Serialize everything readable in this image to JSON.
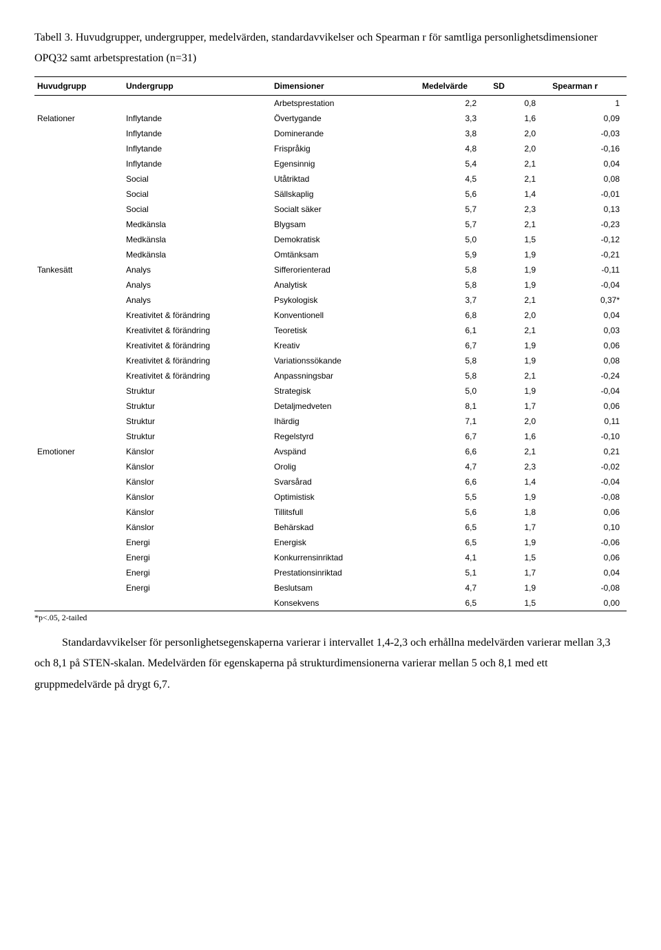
{
  "caption": "Tabell 3. Huvudgrupper, undergrupper, medelvärden, standardavvikelser och Spearman r för samtliga personlighetsdimensioner OPQ32 samt arbetsprestation (n=31)",
  "headers": {
    "huvudgrupp": "Huvudgrupp",
    "undergrupp": "Undergrupp",
    "dimensioner": "Dimensioner",
    "medelvarde": "Medelvärde",
    "sd": "SD",
    "spearman": "Spearman r"
  },
  "rows": [
    {
      "h": "",
      "u": "",
      "d": "Arbetsprestation",
      "m": "2,2",
      "s": "0,8",
      "r": "1"
    },
    {
      "h": "Relationer",
      "u": "Inflytande",
      "d": "Övertygande",
      "m": "3,3",
      "s": "1,6",
      "r": "0,09"
    },
    {
      "h": "",
      "u": "Inflytande",
      "d": "Dominerande",
      "m": "3,8",
      "s": "2,0",
      "r": "-0,03"
    },
    {
      "h": "",
      "u": "Inflytande",
      "d": "Frispråkig",
      "m": "4,8",
      "s": "2,0",
      "r": "-0,16"
    },
    {
      "h": "",
      "u": "Inflytande",
      "d": "Egensinnig",
      "m": "5,4",
      "s": "2,1",
      "r": "0,04"
    },
    {
      "h": "",
      "u": "Social",
      "d": "Utåtriktad",
      "m": "4,5",
      "s": "2,1",
      "r": "0,08"
    },
    {
      "h": "",
      "u": "Social",
      "d": "Sällskaplig",
      "m": "5,6",
      "s": "1,4",
      "r": "-0,01"
    },
    {
      "h": "",
      "u": "Social",
      "d": "Socialt säker",
      "m": "5,7",
      "s": "2,3",
      "r": "0,13"
    },
    {
      "h": "",
      "u": "Medkänsla",
      "d": "Blygsam",
      "m": "5,7",
      "s": "2,1",
      "r": "-0,23"
    },
    {
      "h": "",
      "u": "Medkänsla",
      "d": "Demokratisk",
      "m": "5,0",
      "s": "1,5",
      "r": "-0,12"
    },
    {
      "h": "",
      "u": "Medkänsla",
      "d": "Omtänksam",
      "m": "5,9",
      "s": "1,9",
      "r": "-0,21"
    },
    {
      "h": "Tankesätt",
      "u": "Analys",
      "d": "Sifferorienterad",
      "m": "5,8",
      "s": "1,9",
      "r": "-0,11"
    },
    {
      "h": "",
      "u": "Analys",
      "d": "Analytisk",
      "m": "5,8",
      "s": "1,9",
      "r": "-0,04"
    },
    {
      "h": "",
      "u": "Analys",
      "d": "Psykologisk",
      "m": "3,7",
      "s": "2,1",
      "r": "0,37*"
    },
    {
      "h": "",
      "u": "Kreativitet & förändring",
      "d": "Konventionell",
      "m": "6,8",
      "s": "2,0",
      "r": "0,04"
    },
    {
      "h": "",
      "u": "Kreativitet & förändring",
      "d": "Teoretisk",
      "m": "6,1",
      "s": "2,1",
      "r": "0,03"
    },
    {
      "h": "",
      "u": "Kreativitet & förändring",
      "d": "Kreativ",
      "m": "6,7",
      "s": "1,9",
      "r": "0,06"
    },
    {
      "h": "",
      "u": "Kreativitet & förändring",
      "d": "Variationssökande",
      "m": "5,8",
      "s": "1,9",
      "r": "0,08"
    },
    {
      "h": "",
      "u": "Kreativitet & förändring",
      "d": "Anpassningsbar",
      "m": "5,8",
      "s": "2,1",
      "r": "-0,24"
    },
    {
      "h": "",
      "u": "Struktur",
      "d": "Strategisk",
      "m": "5,0",
      "s": "1,9",
      "r": "-0,04"
    },
    {
      "h": "",
      "u": "Struktur",
      "d": "Detaljmedveten",
      "m": "8,1",
      "s": "1,7",
      "r": "0,06"
    },
    {
      "h": "",
      "u": "Struktur",
      "d": "Ihärdig",
      "m": "7,1",
      "s": "2,0",
      "r": "0,11"
    },
    {
      "h": "",
      "u": "Struktur",
      "d": "Regelstyrd",
      "m": "6,7",
      "s": "1,6",
      "r": "-0,10"
    },
    {
      "h": "Emotioner",
      "u": "Känslor",
      "d": "Avspänd",
      "m": "6,6",
      "s": "2,1",
      "r": "0,21"
    },
    {
      "h": "",
      "u": "Känslor",
      "d": "Orolig",
      "m": "4,7",
      "s": "2,3",
      "r": "-0,02"
    },
    {
      "h": "",
      "u": "Känslor",
      "d": "Svarsårad",
      "m": "6,6",
      "s": "1,4",
      "r": "-0,04"
    },
    {
      "h": "",
      "u": "Känslor",
      "d": "Optimistisk",
      "m": "5,5",
      "s": "1,9",
      "r": "-0,08"
    },
    {
      "h": "",
      "u": "Känslor",
      "d": "Tillitsfull",
      "m": "5,6",
      "s": "1,8",
      "r": "0,06"
    },
    {
      "h": "",
      "u": "Känslor",
      "d": "Behärskad",
      "m": "6,5",
      "s": "1,7",
      "r": "0,10"
    },
    {
      "h": "",
      "u": "Energi",
      "d": "Energisk",
      "m": "6,5",
      "s": "1,9",
      "r": "-0,06"
    },
    {
      "h": "",
      "u": "Energi",
      "d": "Konkurrensinriktad",
      "m": "4,1",
      "s": "1,5",
      "r": "0,06"
    },
    {
      "h": "",
      "u": "Energi",
      "d": "Prestationsinriktad",
      "m": "5,1",
      "s": "1,7",
      "r": "0,04"
    },
    {
      "h": "",
      "u": "Energi",
      "d": "Beslutsam",
      "m": "4,7",
      "s": "1,9",
      "r": "-0,08"
    },
    {
      "h": "",
      "u": "",
      "d": "Konsekvens",
      "m": "6,5",
      "s": "1,5",
      "r": "0,00"
    }
  ],
  "footnote": "*p<.05, 2-tailed",
  "after_text": "Standardavvikelser för personlighetsegenskaperna varierar i intervallet 1,4-2,3 och erhållna medelvärden varierar mellan 3,3 och 8,1 på STEN-skalan. Medelvärden för egenskaperna på strukturdimensionerna varierar mellan 5 och 8,1 med ett gruppmedelvärde på drygt 6,7."
}
